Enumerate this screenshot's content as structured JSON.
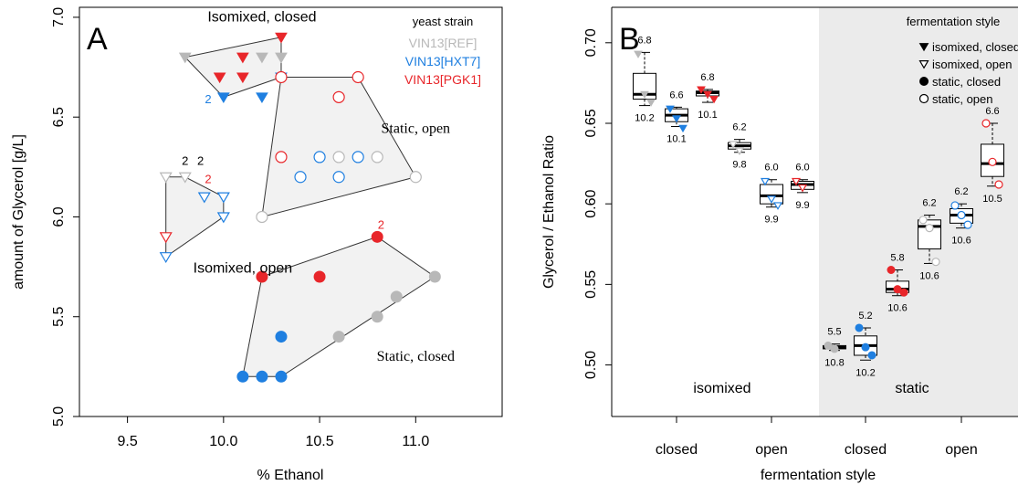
{
  "panels": {
    "A": {
      "letter": "A"
    },
    "B": {
      "letter": "B"
    }
  },
  "chart_data": [
    {
      "type": "scatter",
      "panel": "A",
      "xlabel": "% Ethanol",
      "ylabel": "amount of Glycerol [g/L]",
      "xlim": [
        9.25,
        11.45
      ],
      "ylim": [
        5.0,
        7.05
      ],
      "xticks": [
        "9.5",
        "10.0",
        "10.5",
        "11.0"
      ],
      "yticks": [
        "5.0",
        "5.5",
        "6.0",
        "6.5",
        "7.0"
      ],
      "legend": {
        "title": "yeast strain",
        "position": "top-right",
        "entries": [
          {
            "label": "VIN13[REF]",
            "color": "#b8b8b8"
          },
          {
            "label": "VIN13[HXT7]",
            "color": "#1f7fe0"
          },
          {
            "label": "VIN13[PGK1]",
            "color": "#e8262a"
          }
        ]
      },
      "group_labels": [
        {
          "text": "Isomixed, closed",
          "x": 10.2,
          "y": 6.98
        },
        {
          "text": "Static, open",
          "x": 11.0,
          "y": 6.42
        },
        {
          "text": "Isomixed, open",
          "x": 10.1,
          "y": 5.72
        },
        {
          "text": "Static, closed",
          "x": 11.0,
          "y": 5.28
        }
      ],
      "count_labels": [
        {
          "text": "2",
          "x": 9.92,
          "y": 6.57,
          "color": "#1f7fe0"
        },
        {
          "text": "2",
          "x": 9.8,
          "y": 6.26,
          "color": "#000000"
        },
        {
          "text": "2",
          "x": 9.88,
          "y": 6.26,
          "color": "#000000"
        },
        {
          "text": "2",
          "x": 9.92,
          "y": 6.17,
          "color": "#e8262a"
        },
        {
          "text": "2",
          "x": 10.82,
          "y": 5.94,
          "color": "#e8262a"
        }
      ],
      "hulls": [
        {
          "group": "isomixed-closed",
          "points": [
            [
              9.8,
              6.8
            ],
            [
              10.3,
              6.9
            ],
            [
              10.3,
              6.7
            ],
            [
              10.0,
              6.6
            ]
          ]
        },
        {
          "group": "static-open",
          "points": [
            [
              10.3,
              6.7
            ],
            [
              10.7,
              6.7
            ],
            [
              11.0,
              6.2
            ],
            [
              10.2,
              6.0
            ]
          ]
        },
        {
          "group": "isomixed-open",
          "points": [
            [
              9.7,
              6.2
            ],
            [
              9.8,
              6.2
            ],
            [
              10.0,
              6.1
            ],
            [
              10.0,
              6.0
            ],
            [
              9.7,
              5.8
            ]
          ]
        },
        {
          "group": "static-closed",
          "points": [
            [
              10.2,
              5.7
            ],
            [
              10.8,
              5.9
            ],
            [
              11.1,
              5.7
            ],
            [
              10.3,
              5.2
            ],
            [
              10.1,
              5.2
            ]
          ]
        }
      ],
      "points": [
        {
          "x": 9.8,
          "y": 6.8,
          "strain": "REF",
          "marker": "tri-down-filled"
        },
        {
          "x": 10.2,
          "y": 6.8,
          "strain": "REF",
          "marker": "tri-down-filled"
        },
        {
          "x": 10.3,
          "y": 6.8,
          "strain": "REF",
          "marker": "tri-down-filled"
        },
        {
          "x": 10.0,
          "y": 6.6,
          "strain": "HXT7",
          "marker": "tri-down-filled"
        },
        {
          "x": 10.2,
          "y": 6.6,
          "strain": "HXT7",
          "marker": "tri-down-filled"
        },
        {
          "x": 10.3,
          "y": 6.7,
          "strain": "HXT7",
          "marker": "tri-down-filled"
        },
        {
          "x": 10.3,
          "y": 6.9,
          "strain": "PGK1",
          "marker": "tri-down-filled"
        },
        {
          "x": 10.1,
          "y": 6.8,
          "strain": "PGK1",
          "marker": "tri-down-filled"
        },
        {
          "x": 9.98,
          "y": 6.7,
          "strain": "PGK1",
          "marker": "tri-down-filled"
        },
        {
          "x": 10.1,
          "y": 6.7,
          "strain": "PGK1",
          "marker": "tri-down-filled"
        },
        {
          "x": 10.6,
          "y": 6.3,
          "strain": "REF",
          "marker": "circle-open"
        },
        {
          "x": 10.8,
          "y": 6.3,
          "strain": "REF",
          "marker": "circle-open"
        },
        {
          "x": 11.0,
          "y": 6.2,
          "strain": "REF",
          "marker": "circle-open"
        },
        {
          "x": 10.2,
          "y": 6.0,
          "strain": "REF",
          "marker": "circle-open"
        },
        {
          "x": 10.4,
          "y": 6.2,
          "strain": "HXT7",
          "marker": "circle-open"
        },
        {
          "x": 10.5,
          "y": 6.3,
          "strain": "HXT7",
          "marker": "circle-open"
        },
        {
          "x": 10.6,
          "y": 6.2,
          "strain": "HXT7",
          "marker": "circle-open"
        },
        {
          "x": 10.7,
          "y": 6.3,
          "strain": "HXT7",
          "marker": "circle-open"
        },
        {
          "x": 10.3,
          "y": 6.7,
          "strain": "PGK1",
          "marker": "circle-open"
        },
        {
          "x": 10.7,
          "y": 6.7,
          "strain": "PGK1",
          "marker": "circle-open"
        },
        {
          "x": 10.6,
          "y": 6.6,
          "strain": "PGK1",
          "marker": "circle-open"
        },
        {
          "x": 10.3,
          "y": 6.3,
          "strain": "PGK1",
          "marker": "circle-open"
        },
        {
          "x": 9.7,
          "y": 6.2,
          "strain": "REF",
          "marker": "tri-down-open"
        },
        {
          "x": 9.8,
          "y": 6.2,
          "strain": "REF",
          "marker": "tri-down-open"
        },
        {
          "x": 9.7,
          "y": 5.8,
          "strain": "HXT7",
          "marker": "tri-down-open"
        },
        {
          "x": 9.9,
          "y": 6.1,
          "strain": "HXT7",
          "marker": "tri-down-open"
        },
        {
          "x": 10.0,
          "y": 6.1,
          "strain": "HXT7",
          "marker": "tri-down-open"
        },
        {
          "x": 10.0,
          "y": 6.0,
          "strain": "HXT7",
          "marker": "tri-down-open"
        },
        {
          "x": 9.7,
          "y": 5.9,
          "strain": "PGK1",
          "marker": "tri-down-open"
        },
        {
          "x": 10.6,
          "y": 5.4,
          "strain": "REF",
          "marker": "circle-filled"
        },
        {
          "x": 10.8,
          "y": 5.5,
          "strain": "REF",
          "marker": "circle-filled"
        },
        {
          "x": 10.9,
          "y": 5.6,
          "strain": "REF",
          "marker": "circle-filled"
        },
        {
          "x": 11.1,
          "y": 5.7,
          "strain": "REF",
          "marker": "circle-filled"
        },
        {
          "x": 10.1,
          "y": 5.2,
          "strain": "HXT7",
          "marker": "circle-filled"
        },
        {
          "x": 10.2,
          "y": 5.2,
          "strain": "HXT7",
          "marker": "circle-filled"
        },
        {
          "x": 10.3,
          "y": 5.2,
          "strain": "HXT7",
          "marker": "circle-filled"
        },
        {
          "x": 10.3,
          "y": 5.4,
          "strain": "HXT7",
          "marker": "circle-filled"
        },
        {
          "x": 10.2,
          "y": 5.7,
          "strain": "PGK1",
          "marker": "circle-filled"
        },
        {
          "x": 10.5,
          "y": 5.7,
          "strain": "PGK1",
          "marker": "circle-filled"
        },
        {
          "x": 10.8,
          "y": 5.9,
          "strain": "PGK1",
          "marker": "circle-filled"
        }
      ]
    },
    {
      "type": "box",
      "panel": "B",
      "xlabel": "fermentation style",
      "ylabel": "Glycerol / Ethanol Ratio",
      "ylim": [
        0.468,
        0.722
      ],
      "yticks": [
        "0.50",
        "0.55",
        "0.60",
        "0.65",
        "0.70"
      ],
      "categories": [
        "closed",
        "open",
        "closed",
        "open"
      ],
      "section_labels": [
        "isomixed",
        "static"
      ],
      "shaded_region": "static",
      "legend": {
        "title": "fermentation style",
        "position": "top-right",
        "entries": [
          {
            "label": "isomixed, closed",
            "marker": "tri-down-filled"
          },
          {
            "label": "isomixed, open",
            "marker": "tri-down-open"
          },
          {
            "label": "static, closed",
            "marker": "circle-filled"
          },
          {
            "label": "static, open",
            "marker": "circle-open"
          }
        ]
      },
      "boxes": [
        {
          "group": "isomixed-closed",
          "strain": "REF",
          "stats": [
            0.661,
            0.665,
            0.668,
            0.681,
            0.694
          ],
          "top_label": "6.8",
          "bottom_label": "10.2",
          "points": [
            0.693,
            0.668,
            0.663
          ],
          "marker": "tri-down-filled"
        },
        {
          "group": "isomixed-closed",
          "strain": "HXT7",
          "stats": [
            0.648,
            0.651,
            0.655,
            0.659,
            0.66
          ],
          "top_label": "6.6",
          "bottom_label": "10.1",
          "points": [
            0.659,
            0.653,
            0.647
          ],
          "marker": "tri-down-filled"
        },
        {
          "group": "isomixed-closed",
          "strain": "PGK1",
          "stats": [
            0.663,
            0.667,
            0.669,
            0.67,
            0.671
          ],
          "top_label": "6.8",
          "bottom_label": "10.1",
          "points": [
            0.671,
            0.668,
            0.665
          ],
          "marker": "tri-down-filled"
        },
        {
          "group": "isomixed-open",
          "strain": "REF",
          "stats": [
            0.632,
            0.634,
            0.636,
            0.638,
            0.64
          ],
          "top_label": "6.2",
          "bottom_label": "9.8",
          "points": [
            0.637,
            0.633
          ],
          "marker": "tri-down-open"
        },
        {
          "group": "isomixed-open",
          "strain": "HXT7",
          "stats": [
            0.598,
            0.6,
            0.605,
            0.612,
            0.615
          ],
          "top_label": "6.0",
          "bottom_label": "9.9",
          "points": [
            0.614,
            0.603,
            0.599
          ],
          "marker": "tri-down-open"
        },
        {
          "group": "isomixed-open",
          "strain": "PGK1",
          "stats": [
            0.607,
            0.609,
            0.612,
            0.614,
            0.615
          ],
          "top_label": "6.0",
          "bottom_label": "9.9",
          "points": [
            0.614,
            0.61
          ],
          "marker": "tri-down-open"
        },
        {
          "group": "static-closed",
          "strain": "REF",
          "stats": [
            0.509,
            0.51,
            0.511,
            0.512,
            0.513
          ],
          "top_label": "5.5",
          "bottom_label": "10.8",
          "points": [
            0.512,
            0.51
          ],
          "marker": "circle-filled"
        },
        {
          "group": "static-closed",
          "strain": "HXT7",
          "stats": [
            0.503,
            0.506,
            0.512,
            0.518,
            0.523
          ],
          "top_label": "5.2",
          "bottom_label": "10.2",
          "points": [
            0.523,
            0.511,
            0.506
          ],
          "marker": "circle-filled"
        },
        {
          "group": "static-closed",
          "strain": "PGK1",
          "stats": [
            0.543,
            0.545,
            0.547,
            0.552,
            0.559
          ],
          "top_label": "5.8",
          "bottom_label": "10.6",
          "points": [
            0.559,
            0.547,
            0.545
          ],
          "marker": "circle-filled"
        },
        {
          "group": "static-open",
          "strain": "REF",
          "stats": [
            0.563,
            0.572,
            0.586,
            0.59,
            0.593
          ],
          "top_label": "6.2",
          "bottom_label": "10.6",
          "points": [
            0.59,
            0.585,
            0.564
          ],
          "marker": "circle-open"
        },
        {
          "group": "static-open",
          "strain": "HXT7",
          "stats": [
            0.585,
            0.588,
            0.593,
            0.597,
            0.6
          ],
          "top_label": "6.2",
          "bottom_label": "10.6",
          "points": [
            0.599,
            0.593,
            0.587
          ],
          "marker": "circle-open"
        },
        {
          "group": "static-open",
          "strain": "PGK1",
          "stats": [
            0.611,
            0.617,
            0.625,
            0.637,
            0.65
          ],
          "top_label": "6.6",
          "bottom_label": "10.5",
          "points": [
            0.65,
            0.626,
            0.612
          ],
          "marker": "circle-open"
        }
      ]
    }
  ],
  "colors": {
    "REF": "#b8b8b8",
    "HXT7": "#1f7fe0",
    "PGK1": "#e8262a",
    "hull_fill": "#f2f2f2",
    "shade": "#ebebeb",
    "axis": "#000000"
  }
}
